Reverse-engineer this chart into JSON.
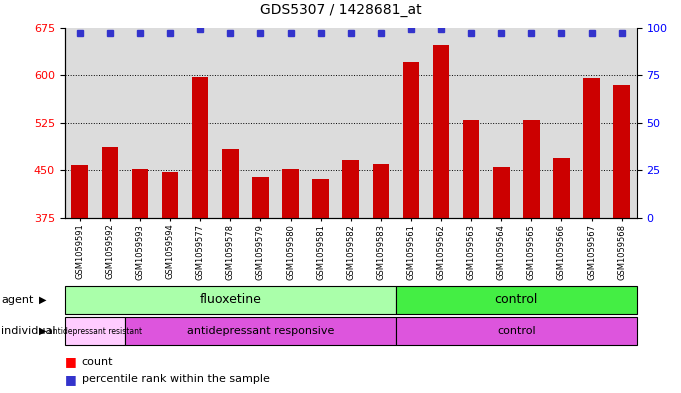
{
  "title": "GDS5307 / 1428681_at",
  "samples": [
    "GSM1059591",
    "GSM1059592",
    "GSM1059593",
    "GSM1059594",
    "GSM1059577",
    "GSM1059578",
    "GSM1059579",
    "GSM1059580",
    "GSM1059581",
    "GSM1059582",
    "GSM1059583",
    "GSM1059561",
    "GSM1059562",
    "GSM1059563",
    "GSM1059564",
    "GSM1059565",
    "GSM1059566",
    "GSM1059567",
    "GSM1059568"
  ],
  "counts": [
    458,
    487,
    453,
    447,
    597,
    484,
    440,
    452,
    436,
    467,
    460,
    620,
    648,
    530,
    455,
    530,
    470,
    595,
    585
  ],
  "percentiles": [
    97,
    97,
    97,
    97,
    99,
    97,
    97,
    97,
    97,
    97,
    97,
    99,
    99,
    97,
    97,
    97,
    97,
    97,
    97
  ],
  "ymin": 375,
  "ymax": 675,
  "yright_min": 0,
  "yright_max": 100,
  "yticks_left": [
    375,
    450,
    525,
    600,
    675
  ],
  "yticks_right": [
    0,
    25,
    50,
    75,
    100
  ],
  "bar_color": "#CC0000",
  "dot_color": "#3333CC",
  "background_color": "#DCDCDC",
  "grid_color": "#000000",
  "flu_color": "#AAFFAA",
  "ctrl_agent_color": "#44EE44",
  "resist_color": "#FFCCFF",
  "resp_color": "#DD55DD",
  "ctrl_indiv_color": "#DD55DD",
  "legend_count_label": "count",
  "legend_percentile_label": "percentile rank within the sample"
}
